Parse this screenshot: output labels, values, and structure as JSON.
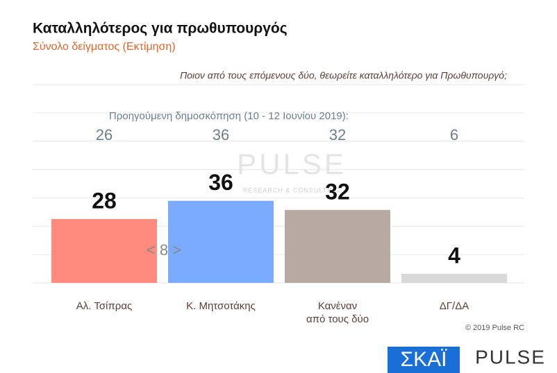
{
  "title": "Καταλληλότερος για πρωθυπουργός",
  "subtitle": "Σύνολο δείγματος   (Εκτίμηση)",
  "chart_data": {
    "type": "bar",
    "question": "Ποιον από τους επόμενους δύο, θεωρείτε καταλληλότερο για Πρωθυπουργό;",
    "previous_label": "Προηγούμενη δημοσκόπηση (10 - 12 Ιουνίου 2019):",
    "categories": [
      "Αλ. Τσίπρας",
      "Κ. Μητσοτάκης",
      "Κανέναν\nαπό τους δύο",
      "ΔΓ/ΔΑ"
    ],
    "values": [
      28,
      36,
      32,
      4
    ],
    "colors": [
      "#ff8a7e",
      "#7aabff",
      "#b8aaa2",
      "#d9d9d9"
    ],
    "previous_values": [
      26,
      36,
      32,
      6
    ],
    "annotation": "< 8 >",
    "ylim": [
      0,
      87
    ],
    "grid": true
  },
  "watermark": {
    "name": "PULSE",
    "tagline": "RESEARCH & CONSULTING"
  },
  "footer": {
    "copyright": "© 2019 Pulse RC",
    "logo_left": "ΣΚΑЇ",
    "logo_right": "PULSE"
  }
}
